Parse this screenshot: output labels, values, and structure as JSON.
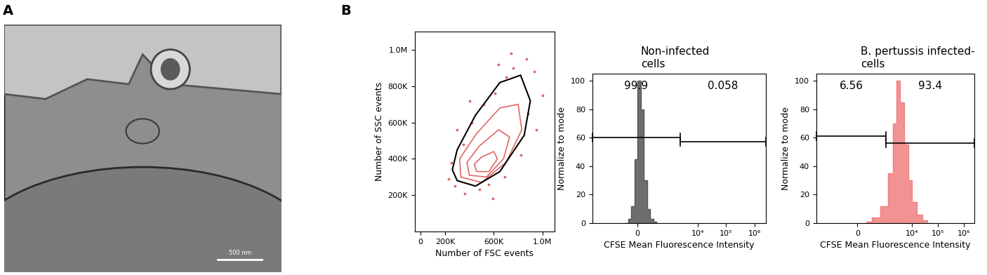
{
  "panel_labels": [
    "A",
    "B"
  ],
  "image": {
    "type": "micrograph",
    "scale_bar": "500 nm"
  },
  "chart_data": [
    {
      "type": "contour",
      "xlabel": "Number of FSC events",
      "ylabel": "Number of SSC events",
      "xlim": [
        -50000,
        1100000
      ],
      "ylim": [
        0,
        1100000
      ],
      "xticks": [
        0,
        {
          "value": 200000,
          "label": "200K"
        },
        {
          "value": 600000,
          "label": "600K"
        },
        {
          "value": 1000000,
          "label": "1.0M"
        }
      ],
      "yticks": [
        {
          "value": 200000,
          "label": "200K"
        },
        {
          "value": 400000,
          "label": "400K"
        },
        {
          "value": 600000,
          "label": "600K"
        },
        {
          "value": 800000,
          "label": "800K"
        },
        {
          "value": 1000000,
          "label": "1.0M"
        }
      ],
      "color": "#e06666",
      "contours": [
        {
          "x": [
            330000,
            500000,
            700000,
            830000,
            800000,
            650000,
            460000,
            320000
          ],
          "y": [
            300000,
            270000,
            380000,
            560000,
            700000,
            680000,
            540000,
            400000
          ]
        },
        {
          "x": [
            400000,
            540000,
            680000,
            730000,
            640000,
            480000,
            380000
          ],
          "y": [
            310000,
            300000,
            400000,
            520000,
            560000,
            470000,
            380000
          ]
        },
        {
          "x": [
            460000,
            560000,
            630000,
            600000,
            500000,
            440000
          ],
          "y": [
            330000,
            330000,
            400000,
            440000,
            410000,
            370000
          ]
        }
      ],
      "gate": {
        "x": [
          300000,
          450000,
          650000,
          850000,
          900000,
          820000,
          650000,
          450000,
          300000,
          260000
        ],
        "y": [
          280000,
          250000,
          330000,
          530000,
          720000,
          860000,
          820000,
          640000,
          450000,
          340000
        ]
      },
      "points": {
        "x": [
          280000,
          350000,
          420000,
          520000,
          610000,
          700000,
          760000,
          880000,
          930000,
          250000,
          300000,
          480000,
          560000,
          690000,
          820000,
          950000,
          400000,
          640000,
          740000,
          870000,
          360000,
          590000,
          1000000,
          230000
        ],
        "y": [
          250000,
          480000,
          600000,
          700000,
          760000,
          850000,
          900000,
          650000,
          880000,
          380000,
          560000,
          230000,
          260000,
          300000,
          420000,
          560000,
          720000,
          920000,
          980000,
          950000,
          210000,
          180000,
          750000,
          290000
        ]
      }
    },
    {
      "type": "histogram",
      "title": "Non-infected\ncells",
      "xlabel": "CFSE Mean Fluorescence Intensity",
      "ylabel": "Normalize to mode",
      "log": "x",
      "xlim": [
        -3000,
        2500000
      ],
      "ylim": [
        0,
        105
      ],
      "xticks": [
        0,
        {
          "value": 10000,
          "label": "10⁴"
        },
        {
          "value": 100000,
          "label": "10⁵"
        },
        {
          "value": 1000000,
          "label": "10⁶"
        }
      ],
      "yticks": [
        0,
        20,
        40,
        60,
        80,
        100
      ],
      "color": "#555555",
      "bins": [
        -400,
        -300,
        -200,
        -100,
        0,
        100,
        200,
        300,
        400,
        500,
        600
      ],
      "counts": [
        0,
        3,
        12,
        45,
        100,
        80,
        30,
        10,
        3,
        1
      ],
      "gates": [
        {
          "x": [
            -3000,
            2500
          ],
          "y": 60,
          "percent": 99.9
        },
        {
          "x": [
            2500,
            2500000
          ],
          "y": 57,
          "percent": 0.058
        }
      ]
    },
    {
      "type": "histogram",
      "title": "B. pertussis infected-\ncells",
      "xlabel": "CFSE Mean Fluorescence Intensity",
      "ylabel": "Normalize to mode",
      "log": "x",
      "xlim": [
        -3000,
        2500000
      ],
      "ylim": [
        0,
        105
      ],
      "xticks": [
        0,
        {
          "value": 10000,
          "label": "10⁴"
        },
        {
          "value": 100000,
          "label": "10⁵"
        },
        {
          "value": 1000000,
          "label": "10⁶"
        }
      ],
      "yticks": [
        0,
        20,
        40,
        60,
        80,
        100
      ],
      "color": "#f08080",
      "bins": [
        300,
        500,
        800,
        1200,
        1800,
        2500,
        3500,
        5000,
        7000,
        10000,
        15000,
        25000,
        40000,
        60000
      ],
      "counts": [
        1,
        4,
        12,
        35,
        70,
        100,
        85,
        55,
        30,
        15,
        6,
        2,
        0
      ],
      "gates": [
        {
          "x": [
            -3000,
            1000
          ],
          "y": 61,
          "percent": 6.56
        },
        {
          "x": [
            1000,
            2500000
          ],
          "y": 56,
          "percent": 93.4
        }
      ]
    }
  ]
}
